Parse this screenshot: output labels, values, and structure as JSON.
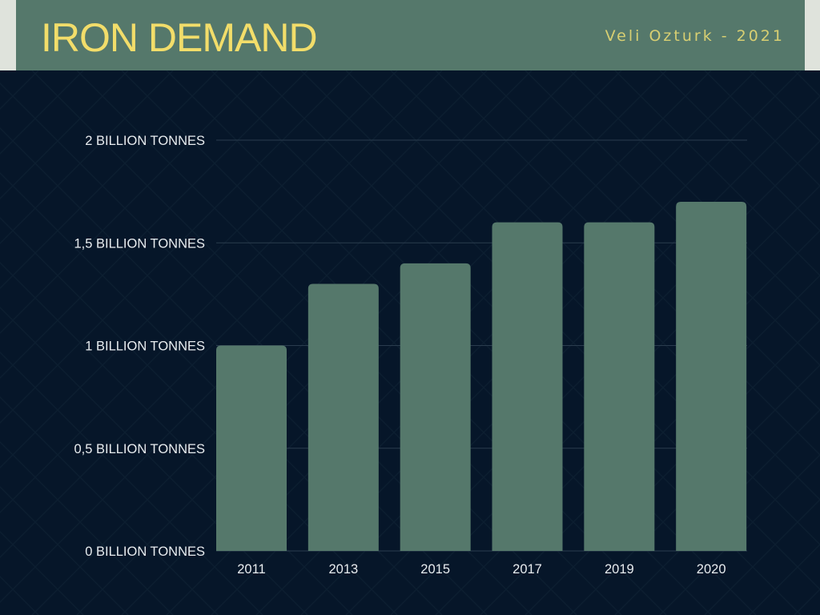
{
  "header": {
    "title": "IRON DEMAND",
    "author": "Veli Ozturk - 2021"
  },
  "colors": {
    "background": "#061629",
    "header": "#55786b",
    "bar": "#55786b",
    "title": "#f2dd6a",
    "author": "#d8cf72"
  },
  "chart_data": {
    "type": "bar",
    "title": "IRON DEMAND",
    "xlabel": "",
    "ylabel": "",
    "categories": [
      "2011",
      "2013",
      "2015",
      "2017",
      "2019",
      "2020"
    ],
    "values": [
      1.0,
      1.3,
      1.4,
      1.6,
      1.6,
      1.7
    ],
    "unit": "billion tonnes",
    "ylim": [
      0,
      2
    ],
    "yticks": [
      {
        "value": 0,
        "label": "0 BILLION TONNES"
      },
      {
        "value": 0.5,
        "label": "0,5 BILLION TONNES"
      },
      {
        "value": 1,
        "label": "1 BILLION TONNES"
      },
      {
        "value": 1.5,
        "label": "1,5 BILLION TONNES"
      },
      {
        "value": 2,
        "label": "2 BILLION TONNES"
      }
    ],
    "grid": true,
    "legend": "none"
  }
}
